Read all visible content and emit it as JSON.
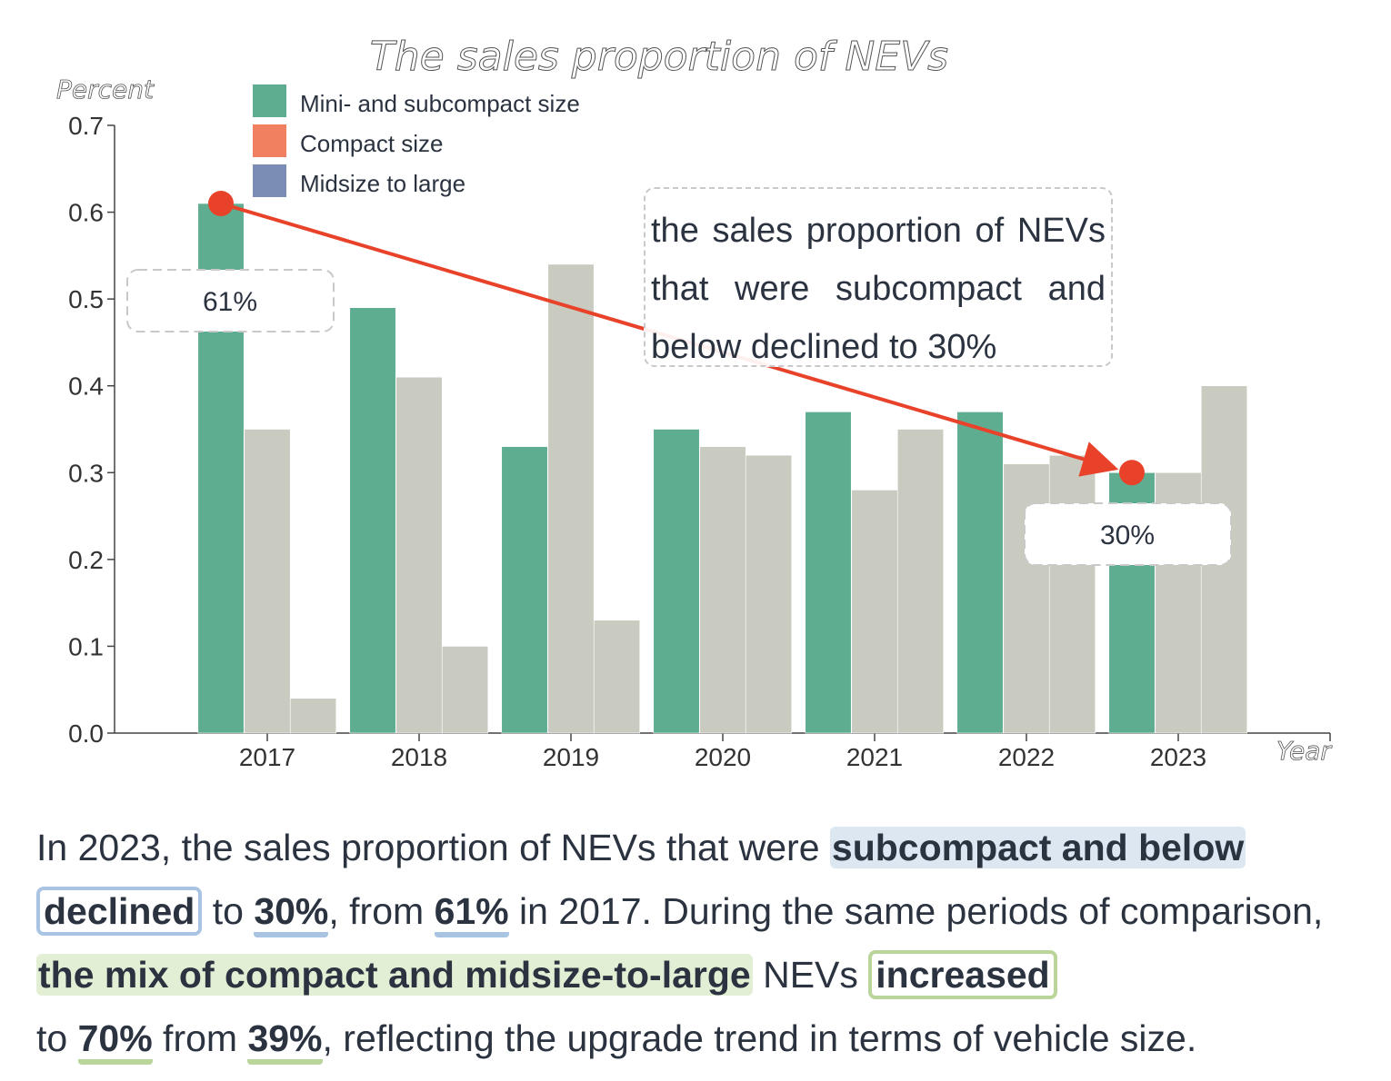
{
  "chart_data": {
    "type": "bar",
    "title": "The sales proportion of NEVs",
    "ylabel": "Percent",
    "xlabel": "Year",
    "categories": [
      "2017",
      "2018",
      "2019",
      "2020",
      "2021",
      "2022",
      "2023"
    ],
    "ylim": [
      0,
      0.7
    ],
    "yticks": [
      "0.0",
      "0.1",
      "0.2",
      "0.3",
      "0.4",
      "0.5",
      "0.6",
      "0.7"
    ],
    "series": [
      {
        "name": "Mini- and subcompact size",
        "color": "#5fad91",
        "values": [
          0.61,
          0.49,
          0.33,
          0.35,
          0.37,
          0.37,
          0.3
        ]
      },
      {
        "name": "Compact size",
        "color": "#f08060",
        "display_color": "#c9cbc0",
        "values": [
          0.35,
          0.41,
          0.54,
          0.33,
          0.28,
          0.31,
          0.3
        ]
      },
      {
        "name": "Midsize to large",
        "color": "#7b8cb5",
        "display_color": "#c9cbc0",
        "values": [
          0.04,
          0.1,
          0.13,
          0.32,
          0.35,
          0.32,
          0.4
        ]
      }
    ],
    "legend_position": "top-left",
    "grid": false,
    "annotations": [
      {
        "label": "61%",
        "category": "2017",
        "value": 0.61
      },
      {
        "label": "30%",
        "category": "2023",
        "value": 0.3
      }
    ],
    "arrow_color": "#e8432a"
  },
  "callout": {
    "text": "the sales proportion of NEVs that were subcompact and below declined to 30%"
  },
  "summary": {
    "s1": "In 2023, the sales proportion of NEVs that were ",
    "h1": "subcompact and below",
    "s2": " ",
    "h2": "declined",
    "s3": " to ",
    "h3": "30%",
    "s4": ", from ",
    "h4": "61%",
    "s5": " in 2017. During the same periods of comparison, ",
    "h5": "the mix of compact and midsize-to-large",
    "s6": " NEVs ",
    "h6": "increased",
    "s7": " to ",
    "h7": "70%",
    "s8": " from ",
    "h8": "39%",
    "s9": ", reflecting the upgrade trend in terms of vehicle size."
  }
}
